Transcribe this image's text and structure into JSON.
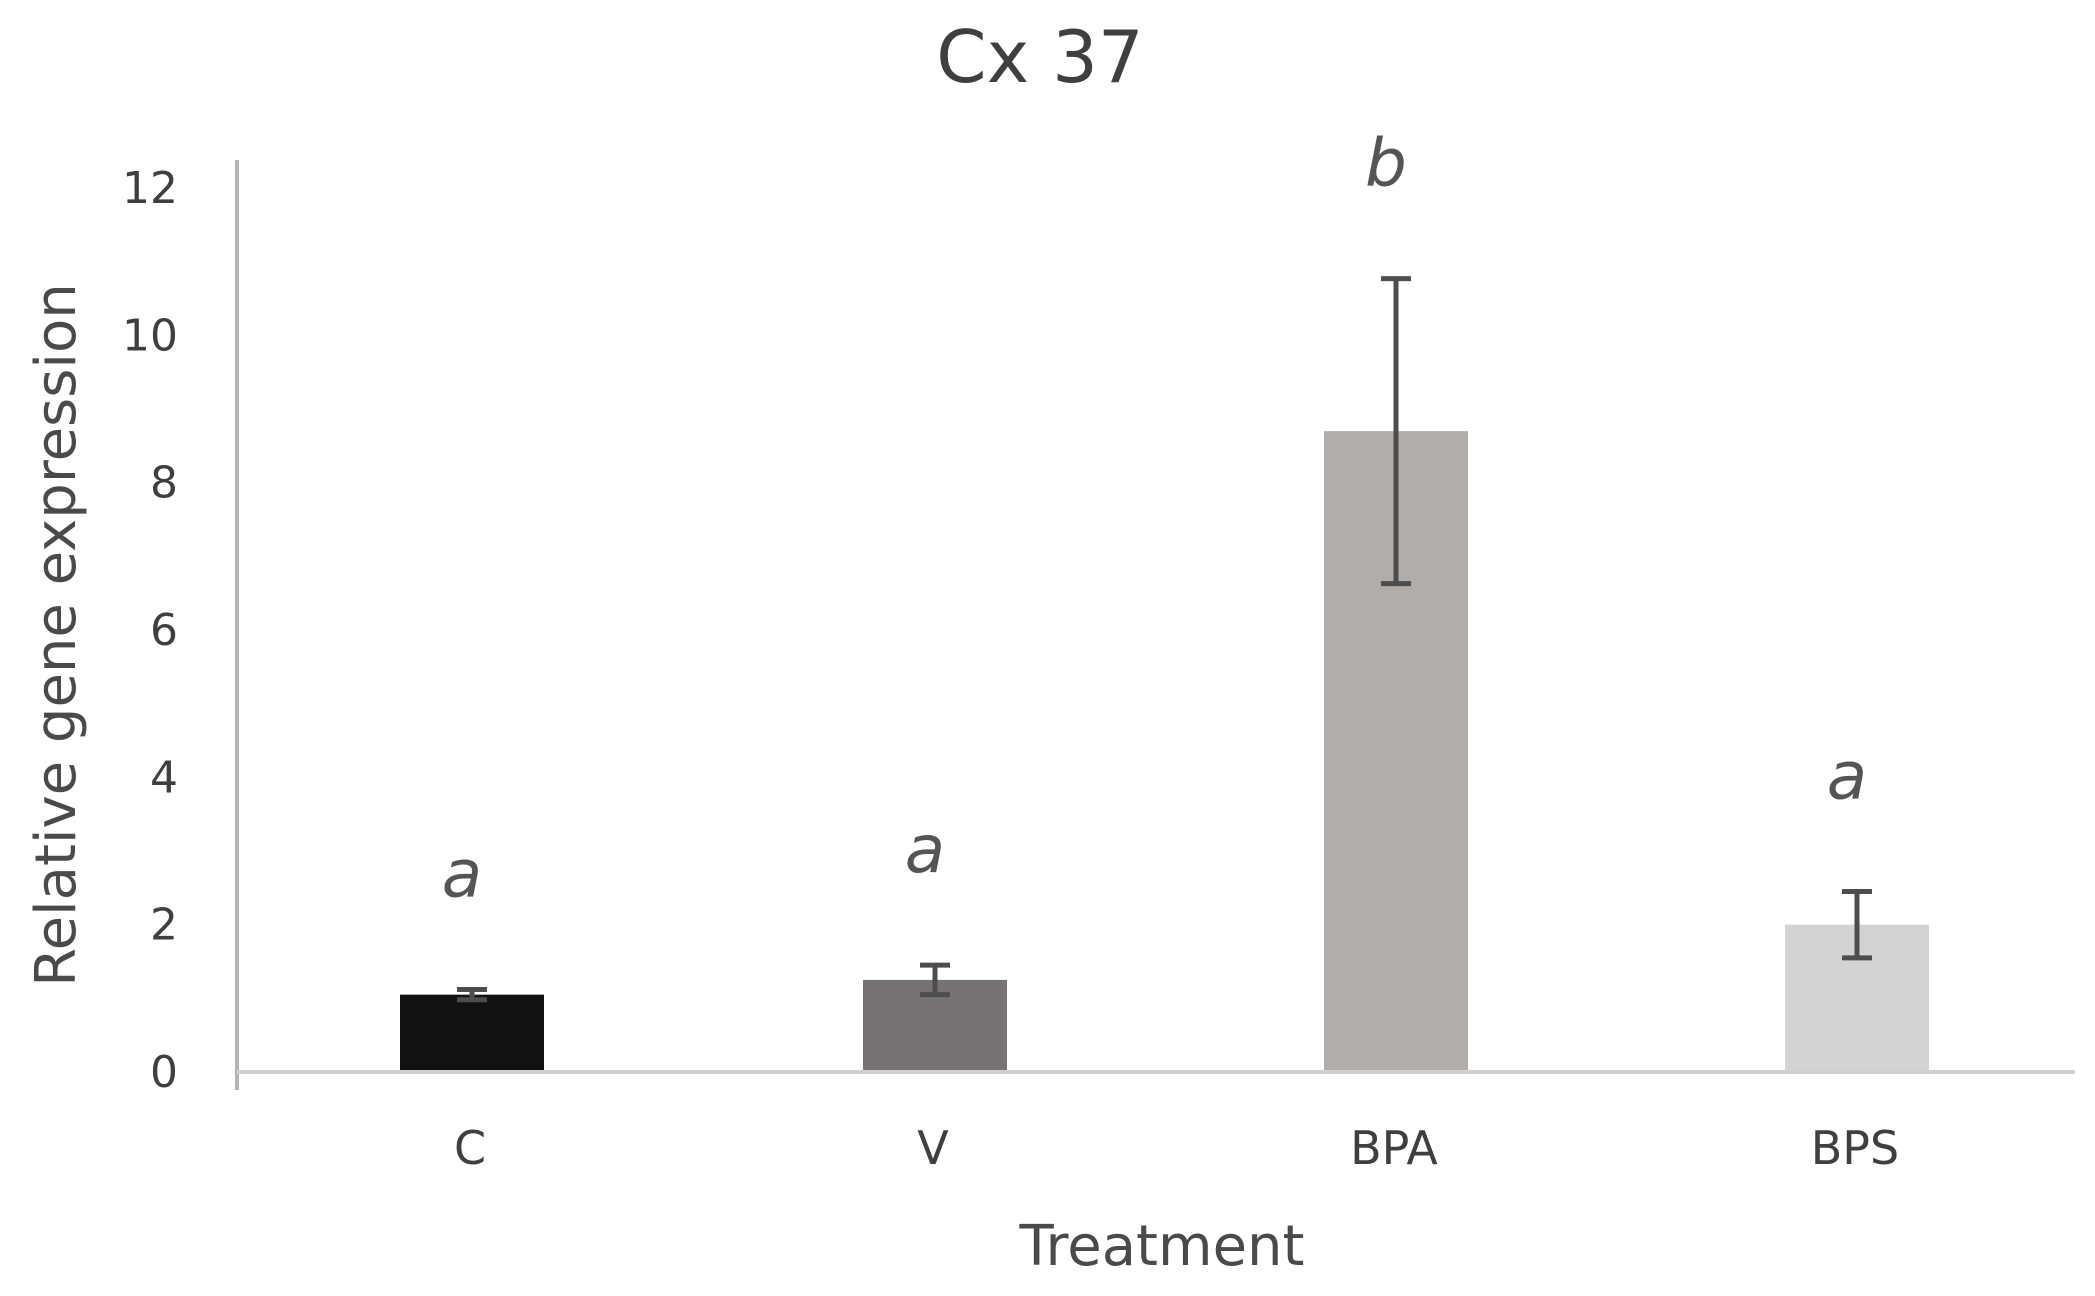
{
  "chart_data": {
    "type": "bar",
    "title": "Cx 37",
    "xlabel": "Treatment",
    "ylabel": "Relative gene expression",
    "categories": [
      "C",
      "V",
      "BPA",
      "BPS"
    ],
    "values": [
      1.05,
      1.25,
      8.7,
      2.0
    ],
    "errors": [
      0.07,
      0.2,
      2.07,
      0.45
    ],
    "significance": [
      "a",
      "a",
      "b",
      "a"
    ],
    "bar_colors": [
      "#111111",
      "#777372",
      "#b1adab",
      "#d3d3d3"
    ],
    "ylim": [
      0,
      12
    ],
    "yticks": [
      0,
      2,
      4,
      6,
      8,
      10,
      12
    ],
    "grid": false,
    "legend": "none"
  }
}
